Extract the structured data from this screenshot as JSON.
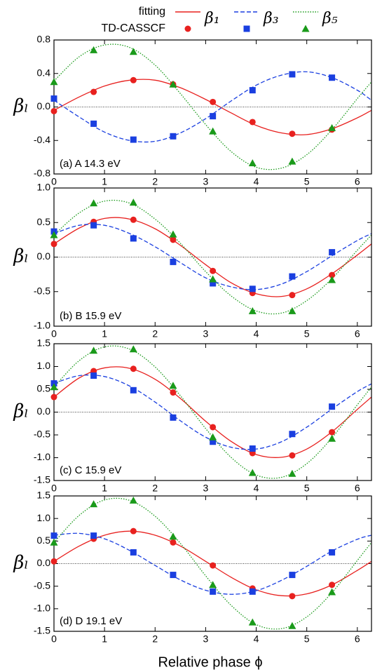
{
  "legend": {
    "rows": [
      "fitting",
      "TD-CASSCF"
    ],
    "columns": [
      "β₁",
      "β₃",
      "β₅"
    ]
  },
  "xlabel": "Relative phase ϕ",
  "chart_data": [
    {
      "type": "line",
      "annotation": "(a) A 14.3 eV",
      "ylabel": "βₗ",
      "xlim": [
        0,
        6.28
      ],
      "xticks": [
        0,
        1,
        2,
        3,
        4,
        5,
        6
      ],
      "ylim": [
        -0.8,
        0.8
      ],
      "yticks": [
        -0.8,
        -0.4,
        {
          "value": 0,
          "label": "0.0"
        },
        0.4,
        0.8
      ],
      "series": [
        {
          "color": "#e8211f",
          "style": "solid",
          "x": [
            0,
            0.5,
            1,
            1.5,
            2,
            2.5,
            3,
            3.5,
            4,
            4.5,
            5,
            5.5,
            6,
            6.28
          ],
          "values": [
            -0.04,
            0.12,
            0.25,
            0.32,
            0.32,
            0.23,
            0.09,
            -0.07,
            -0.22,
            -0.31,
            -0.33,
            -0.26,
            -0.13,
            -0.04
          ]
        },
        {
          "color": "#1a3fe0",
          "style": "dashed",
          "x": [
            0,
            0.5,
            1,
            1.5,
            2,
            2.5,
            3,
            3.5,
            4,
            4.5,
            5,
            5.5,
            6,
            6.28
          ],
          "values": [
            0.08,
            -0.12,
            -0.3,
            -0.4,
            -0.41,
            -0.31,
            -0.14,
            0.07,
            0.26,
            0.38,
            0.42,
            0.35,
            0.2,
            0.08
          ]
        },
        {
          "color": "#1a9a1a",
          "style": "dotted",
          "x": [
            0,
            0.5,
            1,
            1.5,
            2,
            2.5,
            3,
            3.5,
            4,
            4.5,
            5,
            5.5,
            6,
            6.28
          ],
          "values": [
            0.31,
            0.6,
            0.74,
            0.71,
            0.5,
            0.16,
            -0.21,
            -0.53,
            -0.72,
            -0.73,
            -0.57,
            -0.27,
            0.1,
            0.3
          ]
        },
        {
          "color": "#e8211f",
          "marker": "circle",
          "x": [
            0,
            0.785,
            1.571,
            2.356,
            3.142,
            3.927,
            4.712,
            5.498
          ],
          "values": [
            -0.05,
            0.18,
            0.32,
            0.27,
            0.06,
            -0.18,
            -0.32,
            -0.27
          ]
        },
        {
          "color": "#1a3fe0",
          "marker": "square",
          "x": [
            0,
            0.785,
            1.571,
            2.356,
            3.142,
            3.927,
            4.712,
            5.498
          ],
          "values": [
            0.1,
            -0.2,
            -0.39,
            -0.35,
            -0.11,
            0.2,
            0.39,
            0.35
          ]
        },
        {
          "color": "#1a9a1a",
          "marker": "triangle",
          "x": [
            0,
            0.785,
            1.571,
            2.356,
            3.142,
            3.927,
            4.712,
            5.498
          ],
          "values": [
            0.3,
            0.68,
            0.66,
            0.27,
            -0.29,
            -0.67,
            -0.65,
            -0.25
          ]
        }
      ]
    },
    {
      "type": "line",
      "annotation": "(b) B 15.9 eV",
      "ylabel": "βₗ",
      "xlim": [
        0,
        6.28
      ],
      "xticks": [
        0,
        1,
        2,
        3,
        4,
        5,
        6
      ],
      "ylim": [
        -1,
        1
      ],
      "yticks": [
        {
          "value": -1,
          "label": "-1.0"
        },
        -0.5,
        {
          "value": 0,
          "label": "0.0"
        },
        0.5,
        {
          "value": 1,
          "label": "1.0"
        }
      ],
      "series": [
        {
          "color": "#e8211f",
          "style": "solid",
          "x": [
            0,
            0.5,
            1,
            1.5,
            2,
            2.5,
            3,
            3.5,
            4,
            4.5,
            5,
            5.5,
            6,
            6.28
          ],
          "values": [
            0.19,
            0.42,
            0.56,
            0.55,
            0.41,
            0.17,
            -0.11,
            -0.37,
            -0.53,
            -0.57,
            -0.46,
            -0.24,
            0.03,
            0.19
          ]
        },
        {
          "color": "#1a3fe0",
          "style": "dashed",
          "x": [
            0,
            0.5,
            1,
            1.5,
            2,
            2.5,
            3,
            3.5,
            4,
            4.5,
            5,
            5.5,
            6,
            6.28
          ],
          "values": [
            0.34,
            0.46,
            0.46,
            0.34,
            0.15,
            -0.08,
            -0.3,
            -0.43,
            -0.47,
            -0.39,
            -0.21,
            0.02,
            0.24,
            0.34
          ]
        },
        {
          "color": "#1a9a1a",
          "style": "dotted",
          "x": [
            0,
            0.5,
            1,
            1.5,
            2,
            2.5,
            3,
            3.5,
            4,
            4.5,
            5,
            5.5,
            6,
            6.28
          ],
          "values": [
            0.32,
            0.64,
            0.81,
            0.78,
            0.55,
            0.2,
            -0.21,
            -0.56,
            -0.78,
            -0.81,
            -0.63,
            -0.31,
            0.1,
            0.32
          ]
        },
        {
          "color": "#e8211f",
          "marker": "circle",
          "x": [
            0,
            0.785,
            1.571,
            2.356,
            3.142,
            3.927,
            4.712,
            5.498
          ],
          "values": [
            0.19,
            0.51,
            0.54,
            0.25,
            -0.2,
            -0.52,
            -0.55,
            -0.26
          ]
        },
        {
          "color": "#1a3fe0",
          "marker": "square",
          "x": [
            0,
            0.785,
            1.571,
            2.356,
            3.142,
            3.927,
            4.712,
            5.498
          ],
          "values": [
            0.37,
            0.46,
            0.27,
            -0.07,
            -0.38,
            -0.46,
            -0.28,
            0.07
          ]
        },
        {
          "color": "#1a9a1a",
          "marker": "triangle",
          "x": [
            0,
            0.785,
            1.571,
            2.356,
            3.142,
            3.927,
            4.712,
            5.498
          ],
          "values": [
            0.32,
            0.78,
            0.79,
            0.33,
            -0.32,
            -0.78,
            -0.78,
            -0.33
          ]
        }
      ]
    },
    {
      "type": "line",
      "annotation": "(c) C 15.9 eV",
      "ylabel": "βₗ",
      "xlim": [
        0,
        6.28
      ],
      "xticks": [
        0,
        1,
        2,
        3,
        4,
        5,
        6
      ],
      "ylim": [
        -1.5,
        1.5
      ],
      "yticks": [
        -1.5,
        {
          "value": -1,
          "label": "-1.0"
        },
        -0.5,
        {
          "value": 0,
          "label": "0.0"
        },
        0.5,
        {
          "value": 1,
          "label": "1.0"
        },
        1.5
      ],
      "series": [
        {
          "color": "#e8211f",
          "style": "solid",
          "x": [
            0,
            0.5,
            1,
            1.5,
            2,
            2.5,
            3,
            3.5,
            4,
            4.5,
            5,
            5.5,
            6,
            6.28
          ],
          "values": [
            0.33,
            0.75,
            0.97,
            0.96,
            0.72,
            0.3,
            -0.2,
            -0.64,
            -0.93,
            -0.99,
            -0.81,
            -0.43,
            0.06,
            0.33
          ]
        },
        {
          "color": "#1a3fe0",
          "style": "dashed",
          "x": [
            0,
            0.5,
            1,
            1.5,
            2,
            2.5,
            3,
            3.5,
            4,
            4.5,
            5,
            5.5,
            6,
            6.28
          ],
          "values": [
            0.63,
            0.8,
            0.78,
            0.57,
            0.22,
            -0.19,
            -0.55,
            -0.77,
            -0.81,
            -0.65,
            -0.33,
            0.07,
            0.45,
            0.62
          ]
        },
        {
          "color": "#1a9a1a",
          "style": "dotted",
          "x": [
            0,
            0.5,
            1,
            1.5,
            2,
            2.5,
            3,
            3.5,
            4,
            4.5,
            5,
            5.5,
            6,
            6.28
          ],
          "values": [
            0.55,
            1.13,
            1.43,
            1.38,
            0.99,
            0.36,
            -0.36,
            -0.99,
            -1.38,
            -1.43,
            -1.13,
            -0.56,
            0.16,
            0.55
          ]
        },
        {
          "color": "#e8211f",
          "marker": "circle",
          "x": [
            0,
            0.785,
            1.571,
            2.356,
            3.142,
            3.927,
            4.712,
            5.498
          ],
          "values": [
            0.33,
            0.9,
            0.95,
            0.43,
            -0.33,
            -0.9,
            -0.95,
            -0.44
          ]
        },
        {
          "color": "#1a3fe0",
          "marker": "square",
          "x": [
            0,
            0.785,
            1.571,
            2.356,
            3.142,
            3.927,
            4.712,
            5.498
          ],
          "values": [
            0.63,
            0.8,
            0.48,
            -0.12,
            -0.65,
            -0.8,
            -0.48,
            0.12
          ]
        },
        {
          "color": "#1a9a1a",
          "marker": "triangle",
          "x": [
            0,
            0.785,
            1.571,
            2.356,
            3.142,
            3.927,
            4.712,
            5.498
          ],
          "values": [
            0.55,
            1.35,
            1.38,
            0.58,
            -0.55,
            -1.33,
            -1.35,
            -0.58
          ]
        }
      ]
    },
    {
      "type": "line",
      "annotation": "(d) D 19.1 eV",
      "ylabel": "βₗ",
      "xlim": [
        0,
        6.28
      ],
      "xticks": [
        0,
        1,
        2,
        3,
        4,
        5,
        6
      ],
      "ylim": [
        -1.5,
        1.5
      ],
      "yticks": [
        -1.5,
        {
          "value": -1,
          "label": "-1.0"
        },
        -0.5,
        {
          "value": 0,
          "label": "0.0"
        },
        0.5,
        {
          "value": 1,
          "label": "1.0"
        },
        1.5
      ],
      "series": [
        {
          "color": "#e8211f",
          "style": "solid",
          "x": [
            0,
            0.5,
            1,
            1.5,
            2,
            2.5,
            3,
            3.5,
            4,
            4.5,
            5,
            5.5,
            6,
            6.28
          ],
          "values": [
            0.05,
            0.39,
            0.63,
            0.72,
            0.63,
            0.39,
            0.05,
            -0.3,
            -0.58,
            -0.71,
            -0.67,
            -0.47,
            -0.15,
            0.05
          ]
        },
        {
          "color": "#1a3fe0",
          "style": "dashed",
          "x": [
            0,
            0.5,
            1,
            1.5,
            2,
            2.5,
            3,
            3.5,
            4,
            4.5,
            5,
            5.5,
            6,
            6.28
          ],
          "values": [
            0.63,
            0.67,
            0.55,
            0.29,
            -0.04,
            -0.36,
            -0.59,
            -0.68,
            -0.6,
            -0.37,
            -0.06,
            0.28,
            0.54,
            0.63
          ]
        },
        {
          "color": "#1a9a1a",
          "style": "dotted",
          "x": [
            0,
            0.5,
            1,
            1.5,
            2,
            2.5,
            3,
            3.5,
            4,
            4.5,
            5,
            5.5,
            6,
            6.28
          ],
          "values": [
            0.47,
            1.07,
            1.41,
            1.4,
            1.05,
            0.45,
            -0.27,
            -0.92,
            -1.35,
            -1.44,
            -1.18,
            -0.64,
            0.07,
            0.47
          ]
        },
        {
          "color": "#e8211f",
          "marker": "circle",
          "x": [
            0,
            0.785,
            1.571,
            2.356,
            3.142,
            3.927,
            4.712,
            5.498
          ],
          "values": [
            0.05,
            0.55,
            0.72,
            0.47,
            -0.04,
            -0.55,
            -0.72,
            -0.47
          ]
        },
        {
          "color": "#1a3fe0",
          "marker": "square",
          "x": [
            0,
            0.785,
            1.571,
            2.356,
            3.142,
            3.927,
            4.712,
            5.498
          ],
          "values": [
            0.62,
            0.62,
            0.25,
            -0.25,
            -0.62,
            -0.62,
            -0.25,
            0.25
          ]
        },
        {
          "color": "#1a9a1a",
          "marker": "triangle",
          "x": [
            0,
            0.785,
            1.571,
            2.356,
            3.142,
            3.927,
            4.712,
            5.498
          ],
          "values": [
            0.47,
            1.32,
            1.4,
            0.6,
            -0.47,
            -1.3,
            -1.38,
            -0.63
          ]
        }
      ]
    }
  ]
}
